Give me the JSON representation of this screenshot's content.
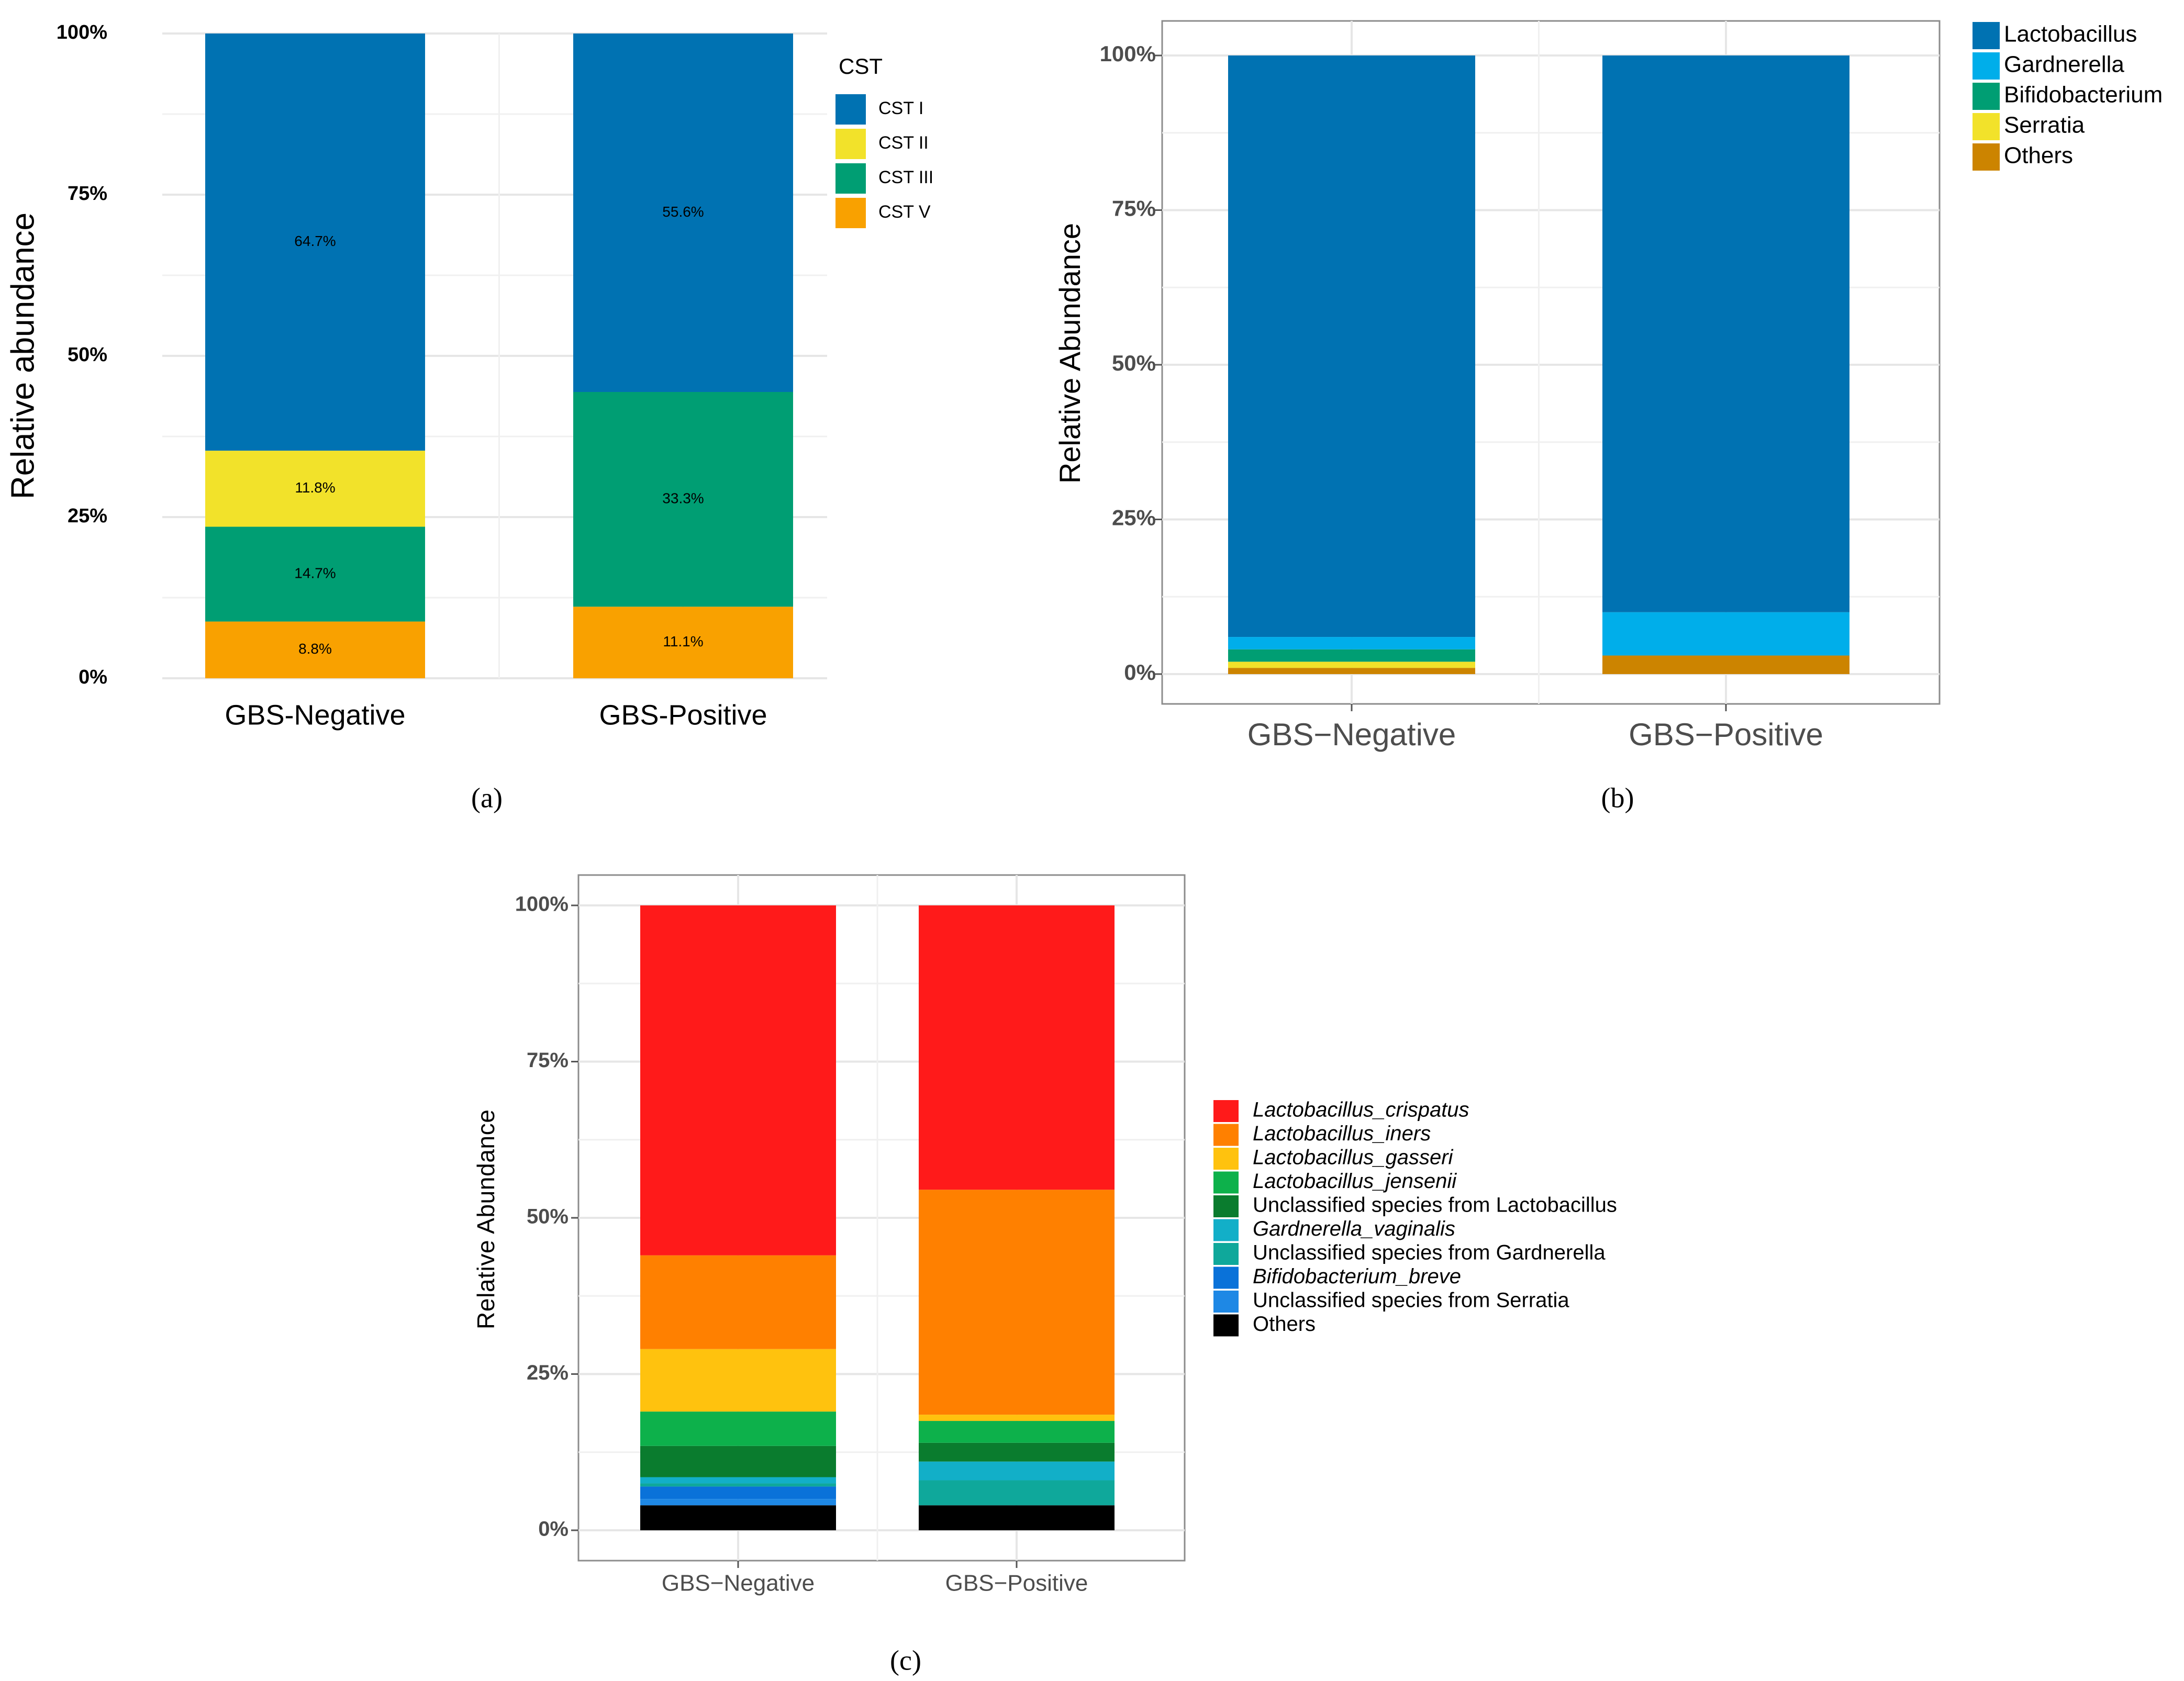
{
  "chart_data": [
    {
      "panel_label": "(a)",
      "type": "bar",
      "stacked": true,
      "grid": true,
      "legend_position": "right",
      "legend_title": "CST",
      "ylabel": "Relative abundance",
      "xlabel": "",
      "ylim": [
        0,
        1
      ],
      "yticks": [
        {
          "value": 0,
          "label": "0%"
        },
        {
          "value": 0.25,
          "label": "25%"
        },
        {
          "value": 0.5,
          "label": "50%"
        },
        {
          "value": 0.75,
          "label": "75%"
        },
        {
          "value": 1,
          "label": "100%"
        }
      ],
      "categories": [
        "GBS-Negative",
        "GBS-Positive"
      ],
      "series": [
        {
          "name": "CST V",
          "color": "#F9A100",
          "values": [
            0.088,
            0.111
          ],
          "labels": [
            "8.8%",
            "11.1%"
          ]
        },
        {
          "name": "CST III",
          "color": "#009E73",
          "values": [
            0.147,
            0.333
          ],
          "labels": [
            "14.7%",
            "33.3%"
          ]
        },
        {
          "name": "CST II",
          "color": "#F2E22A",
          "values": [
            0.118,
            0
          ],
          "labels": [
            "11.8%",
            ""
          ]
        },
        {
          "name": "CST I",
          "color": "#0072B2",
          "values": [
            0.647,
            0.556
          ],
          "labels": [
            "64.7%",
            "55.6%"
          ]
        }
      ],
      "legend": [
        "CST I",
        "CST II",
        "CST III",
        "CST V"
      ]
    },
    {
      "panel_label": "(b)",
      "type": "bar",
      "stacked": true,
      "grid": true,
      "legend_position": "top-right",
      "ylabel": "Relative Abundance",
      "xlabel": "",
      "ylim": [
        0,
        1
      ],
      "yticks": [
        {
          "value": 0,
          "label": "0%"
        },
        {
          "value": 0.25,
          "label": "25%"
        },
        {
          "value": 0.5,
          "label": "50%"
        },
        {
          "value": 0.75,
          "label": "75%"
        },
        {
          "value": 1,
          "label": "100%"
        }
      ],
      "categories": [
        "GBS−Negative",
        "GBS−Positive"
      ],
      "series": [
        {
          "name": "Others",
          "color": "#CC8400",
          "values": [
            0.01,
            0.03
          ]
        },
        {
          "name": "Serratia",
          "color": "#F2E22A",
          "values": [
            0.01,
            0
          ]
        },
        {
          "name": "Bifidobacterium",
          "color": "#009E73",
          "values": [
            0.02,
            0
          ]
        },
        {
          "name": "Gardnerella",
          "color": "#00AEEA",
          "values": [
            0.02,
            0.07
          ]
        },
        {
          "name": "Lactobacillus",
          "color": "#0072B2",
          "values": [
            0.94,
            0.9
          ]
        }
      ],
      "legend": [
        "Lactobacillus",
        "Gardnerella",
        "Bifidobacterium",
        "Serratia",
        "Others"
      ]
    },
    {
      "panel_label": "(c)",
      "type": "bar",
      "stacked": true,
      "grid": true,
      "legend_position": "right",
      "ylabel": "Relative Abundance",
      "xlabel": "",
      "ylim": [
        0,
        1
      ],
      "yticks": [
        {
          "value": 0,
          "label": "0%"
        },
        {
          "value": 0.25,
          "label": "25%"
        },
        {
          "value": 0.5,
          "label": "50%"
        },
        {
          "value": 0.75,
          "label": "75%"
        },
        {
          "value": 1,
          "label": "100%"
        }
      ],
      "categories": [
        "GBS−Negative",
        "GBS−Positive"
      ],
      "series": [
        {
          "name": "Others",
          "color": "#000000",
          "italic": false,
          "values": [
            0.04,
            0.04
          ]
        },
        {
          "name": "Unclassified species from Serratia",
          "color": "#1E88E5",
          "italic": false,
          "values": [
            0.01,
            0
          ]
        },
        {
          "name": "Bifidobacterium_breve",
          "color": "#0A72D9",
          "italic": true,
          "values": [
            0.02,
            0
          ]
        },
        {
          "name": "Unclassified species from Gardnerella",
          "color": "#0FA89B",
          "italic": false,
          "values": [
            0.005,
            0.04
          ]
        },
        {
          "name": "Gardnerella_vaginalis",
          "color": "#12AFC8",
          "italic": true,
          "values": [
            0.01,
            0.03
          ]
        },
        {
          "name": "Unclassified species from Lactobacillus",
          "color": "#0A7C2E",
          "italic": false,
          "values": [
            0.05,
            0.03
          ]
        },
        {
          "name": "Lactobacillus_jensenii",
          "color": "#0DB14B",
          "italic": true,
          "values": [
            0.055,
            0.035
          ]
        },
        {
          "name": "Lactobacillus_gasseri",
          "color": "#FFC20E",
          "italic": true,
          "values": [
            0.1,
            0.01
          ]
        },
        {
          "name": "Lactobacillus_iners",
          "color": "#FF8000",
          "italic": true,
          "values": [
            0.15,
            0.36
          ]
        },
        {
          "name": "Lactobacillus_crispatus",
          "color": "#FF1A1A",
          "italic": true,
          "values": [
            0.56,
            0.455
          ]
        }
      ],
      "legend": [
        "Lactobacillus_crispatus",
        "Lactobacillus_iners",
        "Lactobacillus_gasseri",
        "Lactobacillus_jensenii",
        "Unclassified species from Lactobacillus",
        "Gardnerella_vaginalis",
        "Unclassified species from Gardnerella",
        "Bifidobacterium_breve",
        "Unclassified species from Serratia",
        "Others"
      ]
    }
  ]
}
